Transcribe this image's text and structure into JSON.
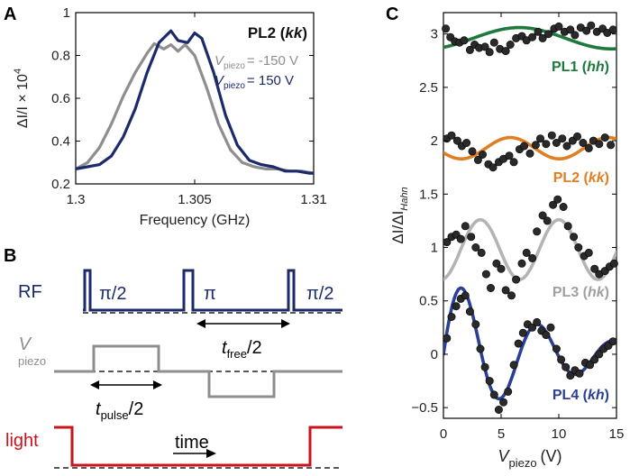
{
  "panels": {
    "a": {
      "letter": "A"
    },
    "b": {
      "letter": "B"
    },
    "c": {
      "letter": "C"
    }
  },
  "colors": {
    "navy": "#1b2a6b",
    "gray": "#8e8e8e",
    "green": "#1e7a3c",
    "orange": "#e07f22",
    "lightgray": "#b4b4b4",
    "blue": "#2a3f96",
    "red": "#c8141e",
    "dot": "#2a2a2a"
  },
  "chart_data": [
    {
      "id": "panel-a",
      "type": "line",
      "xlabel": "Frequency (GHz)",
      "ylabel_main": "ΔI/I × 10",
      "ylabel_exp": "4",
      "xlim": [
        1.3,
        1.31
      ],
      "ylim": [
        0.2,
        1.0
      ],
      "xticks": [
        1.3,
        1.305,
        1.31
      ],
      "xtick_labels": [
        "1.3",
        "1.305",
        "1.31"
      ],
      "yticks": [
        0.2,
        0.4,
        0.6,
        0.8,
        1.0
      ],
      "ytick_labels": [
        "0.2",
        "0.4",
        "0.6",
        "0.8",
        "1"
      ],
      "title_prefix": "PL2 (",
      "title_em": "kk",
      "title_suffix": ")",
      "series": [
        {
          "name": "V_piezo = -150 V",
          "label_main": "V",
          "label_sub": "piezo",
          "label_value": "= -150 V",
          "color": "#8e8e8e",
          "x": [
            1.3,
            1.3005,
            1.301,
            1.3015,
            1.302,
            1.3025,
            1.303,
            1.3033,
            1.3037,
            1.304,
            1.3043,
            1.3046,
            1.305,
            1.3055,
            1.306,
            1.3065,
            1.307,
            1.3075,
            1.308,
            1.3085,
            1.309,
            1.3095,
            1.31
          ],
          "values": [
            0.27,
            0.3,
            0.37,
            0.48,
            0.61,
            0.72,
            0.81,
            0.855,
            0.83,
            0.85,
            0.82,
            0.85,
            0.8,
            0.65,
            0.48,
            0.36,
            0.3,
            0.28,
            0.27,
            0.27,
            0.26,
            0.26,
            0.25
          ]
        },
        {
          "name": "V_piezo = 150 V",
          "label_main": "V",
          "label_sub": "piezo",
          "label_value": "= 150 V",
          "color": "#1b2a6b",
          "x": [
            1.3,
            1.3005,
            1.301,
            1.3015,
            1.302,
            1.3025,
            1.303,
            1.3035,
            1.304,
            1.3043,
            1.3047,
            1.305,
            1.3053,
            1.3058,
            1.3063,
            1.3068,
            1.3073,
            1.3078,
            1.3083,
            1.3088,
            1.3093,
            1.3098,
            1.31
          ],
          "values": [
            0.27,
            0.28,
            0.29,
            0.33,
            0.42,
            0.55,
            0.72,
            0.86,
            0.915,
            0.87,
            0.86,
            0.905,
            0.88,
            0.72,
            0.52,
            0.38,
            0.31,
            0.29,
            0.28,
            0.26,
            0.26,
            0.25,
            0.25
          ]
        }
      ]
    },
    {
      "id": "panel-c",
      "type": "scatter",
      "xlabel_main": "V",
      "xlabel_sub": "piezo",
      "xlabel_unit": "(V)",
      "ylabel_main": "ΔI/ΔI",
      "ylabel_sub": "Hahn",
      "xlim": [
        0,
        15
      ],
      "ylim": [
        -0.6,
        3.2
      ],
      "xticks": [
        0,
        5,
        10,
        15
      ],
      "xtick_labels": [
        "0",
        "5",
        "10",
        "15"
      ],
      "yticks": [
        -0.5,
        0,
        0.5,
        1,
        1.5,
        2,
        2.5,
        3
      ],
      "ytick_labels": [
        "−0.5",
        "0",
        "0.5",
        "1",
        "1.5",
        "2",
        "2.5",
        "3"
      ],
      "series": [
        {
          "name": "PL1 (hh)",
          "label_prefix": "PL1 (",
          "label_em": "hh",
          "label_suffix": ")",
          "color": "#1e7a3c",
          "fit": {
            "offset": 2.96,
            "amplitude": 0.1,
            "period": 16,
            "phase": 3.7,
            "decay": 0
          },
          "x": [
            0.2,
            0.6,
            1.0,
            1.4,
            1.8,
            2.3,
            2.7,
            3.1,
            3.6,
            4.0,
            4.4,
            4.9,
            5.4,
            5.8,
            6.3,
            6.8,
            7.2,
            7.7,
            8.2,
            8.6,
            9.1,
            9.6,
            10.0,
            10.5,
            11.0,
            11.4,
            11.9,
            12.4,
            12.8,
            13.3,
            13.8,
            14.2,
            14.7
          ],
          "values": [
            3.05,
            2.97,
            2.93,
            2.92,
            2.94,
            2.85,
            2.9,
            2.87,
            2.88,
            2.83,
            2.92,
            2.86,
            2.84,
            2.9,
            2.96,
            2.98,
            2.94,
            2.97,
            3.02,
            2.96,
            3.0,
            3.05,
            3.07,
            3.02,
            3.04,
            2.99,
            3.06,
            3.03,
            3.08,
            3.02,
            3.05,
            3.01,
            3.04
          ]
        },
        {
          "name": "PL2 (kk)",
          "label_prefix": "PL2 (",
          "label_em": "kk",
          "label_suffix": ")",
          "color": "#e07f22",
          "fit": {
            "offset": 1.93,
            "amplitude": 0.1,
            "period": 8.5,
            "phase": 2.0,
            "decay": 0
          },
          "x": [
            0.3,
            0.7,
            1.2,
            1.6,
            2.0,
            2.5,
            3.0,
            3.4,
            3.9,
            4.3,
            4.8,
            5.2,
            5.7,
            6.1,
            6.6,
            7.0,
            7.5,
            8.0,
            8.4,
            8.9,
            9.4,
            9.8,
            10.3,
            10.7,
            11.2,
            11.6,
            12.1,
            12.6,
            13.0,
            13.5,
            14.0,
            14.5
          ],
          "values": [
            2.02,
            2.05,
            2.0,
            1.95,
            1.98,
            1.9,
            1.82,
            1.87,
            1.78,
            1.75,
            1.8,
            1.83,
            1.86,
            1.8,
            1.92,
            1.95,
            1.88,
            1.96,
            2.02,
            1.97,
            2.05,
            1.98,
            2.02,
            1.95,
            2.0,
            2.04,
            1.98,
            1.93,
            2.0,
            1.97,
            2.03,
            1.96
          ]
        },
        {
          "name": "PL3 (hk)",
          "label_prefix": "PL3 (",
          "label_em": "hk",
          "label_suffix": ")",
          "color": "#b4b4b4",
          "fit": {
            "offset": 0.98,
            "amplitude": 0.28,
            "period": 6.8,
            "phase": 3.33,
            "decay": 0
          },
          "x": [
            0.3,
            0.7,
            1.1,
            1.5,
            1.9,
            2.4,
            2.8,
            3.3,
            3.7,
            4.1,
            4.6,
            5.0,
            5.4,
            5.9,
            6.3,
            6.8,
            7.2,
            7.7,
            8.1,
            8.6,
            9.0,
            9.5,
            9.9,
            10.4,
            10.8,
            11.3,
            11.7,
            12.2,
            12.6,
            13.1,
            13.5,
            14.0,
            14.4,
            14.8
          ],
          "values": [
            1.05,
            1.1,
            1.12,
            1.08,
            1.2,
            1.1,
            1.0,
            0.95,
            0.75,
            0.62,
            0.85,
            0.8,
            0.6,
            0.55,
            0.7,
            0.85,
            0.95,
            0.9,
            1.15,
            1.3,
            1.25,
            1.4,
            1.45,
            1.38,
            1.2,
            1.1,
            1.0,
            0.92,
            0.95,
            0.8,
            0.75,
            0.78,
            0.82,
            0.85
          ]
        },
        {
          "name": "PL4 (kh)",
          "label_prefix": "PL4 (",
          "label_em": "kh",
          "label_suffix": ")",
          "color": "#2a3f96",
          "fit": {
            "offset": 0.0,
            "amplitude": 0.75,
            "period": 6.6,
            "phase": -1.57,
            "decay": 0.12
          },
          "x": [
            0.3,
            0.7,
            1.1,
            1.5,
            1.9,
            2.3,
            2.8,
            3.2,
            3.6,
            4.0,
            4.4,
            4.8,
            5.2,
            5.6,
            6.1,
            6.5,
            6.9,
            7.3,
            7.7,
            8.1,
            8.5,
            8.9,
            9.3,
            9.8,
            10.2,
            10.6,
            11.0,
            11.4,
            11.8,
            12.3,
            12.7,
            13.1,
            13.5,
            13.9,
            14.3,
            14.7
          ],
          "values": [
            0.15,
            0.35,
            0.45,
            0.52,
            0.55,
            0.4,
            0.28,
            0.05,
            -0.12,
            -0.25,
            -0.38,
            -0.52,
            -0.45,
            -0.35,
            -0.1,
            0.1,
            0.2,
            0.28,
            0.25,
            0.3,
            0.22,
            0.18,
            0.25,
            0.05,
            -0.05,
            -0.12,
            -0.2,
            -0.15,
            -0.18,
            -0.08,
            -0.1,
            -0.05,
            0.0,
            0.05,
            0.08,
            0.12
          ]
        }
      ]
    }
  ],
  "pulse_diagram": {
    "rf_label": "RF",
    "rf_pulses": [
      "π/2",
      "π",
      "π/2"
    ],
    "vpiezo_label_main": "V",
    "vpiezo_label_sub": "piezo",
    "light_label": "light",
    "tfree_main": "t",
    "tfree_sub": "free",
    "tfree_suffix": "/2",
    "tpulse_main": "t",
    "tpulse_sub": "pulse",
    "tpulse_suffix": "/2",
    "time_label": "time"
  }
}
